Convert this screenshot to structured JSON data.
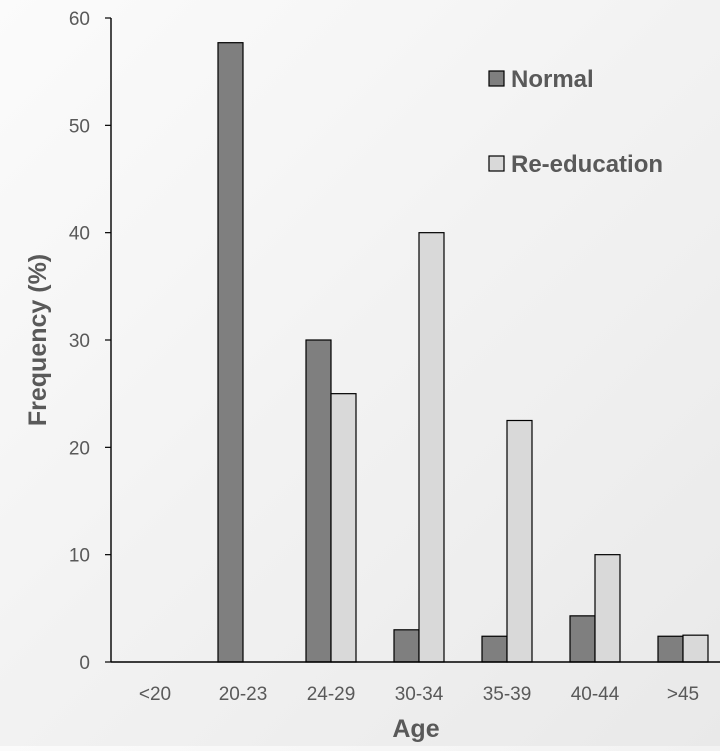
{
  "chart_data": {
    "type": "bar",
    "title": "",
    "xlabel": "Age",
    "ylabel": "Frequency (%)",
    "categories": [
      "<20",
      "20-23",
      "24-29",
      "30-34",
      "35-39",
      "40-44",
      ">45"
    ],
    "series": [
      {
        "name": "Normal",
        "color": "#7f7f7f",
        "values": [
          0,
          57.7,
          30.0,
          3.0,
          2.4,
          4.3,
          2.4
        ]
      },
      {
        "name": "Re-education",
        "color": "#d9d9d9",
        "values": [
          0,
          0,
          25.0,
          40.0,
          22.5,
          10.0,
          2.5
        ]
      }
    ],
    "ylim": [
      0,
      60
    ],
    "yticks": [
      0,
      10,
      20,
      30,
      40,
      50,
      60
    ],
    "grid": false,
    "legend_position": "top-right",
    "axis_color": "#000000",
    "text_color": "#595959",
    "bar_outline_color": "#000000"
  }
}
